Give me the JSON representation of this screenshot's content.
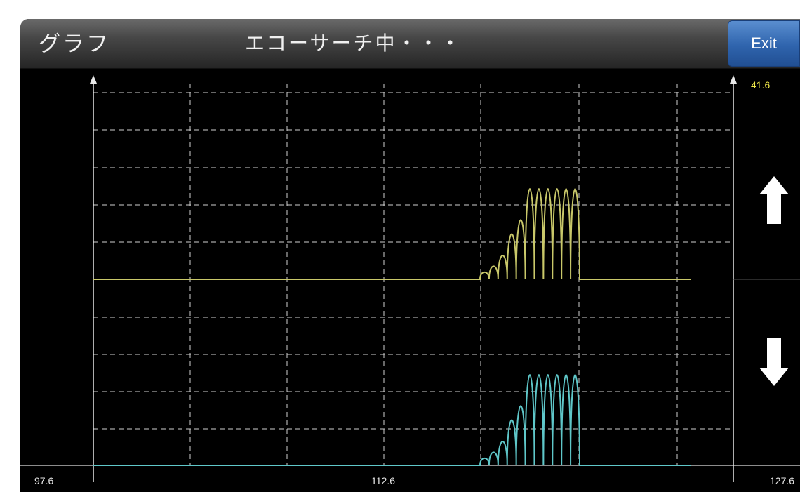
{
  "header": {
    "title": "グラフ",
    "status": "エコーサーチ中・・・",
    "exit_label": "Exit"
  },
  "graph": {
    "y_max_label": "41.6",
    "x_labels": {
      "min": "97.6",
      "mid": "112.6",
      "max": "127.6"
    }
  },
  "controls": {
    "up_icon": "arrow-up-icon",
    "down_icon": "arrow-down-icon"
  },
  "colors": {
    "upper_trace": "#c9c86a",
    "lower_trace": "#5fc7c9",
    "y_max_label": "#f1e84a",
    "exit_button": "#2f64ad",
    "grid": "#cfcfcf"
  },
  "chart_data": {
    "type": "line",
    "xlim": [
      97.6,
      127.6
    ],
    "x_ticks": [
      "97.6",
      "112.6",
      "127.6"
    ],
    "y_max": 41.6,
    "grid": true,
    "series": [
      {
        "color": "#c9c86a",
        "peaks": [
          0.06,
          0.11,
          0.2,
          0.38,
          0.5,
          0.76,
          0.76,
          0.76,
          0.76,
          0.76,
          0.76
        ]
      },
      {
        "color": "#5fc7c9",
        "peaks": [
          0.06,
          0.11,
          0.2,
          0.38,
          0.5,
          0.76,
          0.76,
          0.76,
          0.76,
          0.76,
          0.76
        ]
      }
    ]
  }
}
